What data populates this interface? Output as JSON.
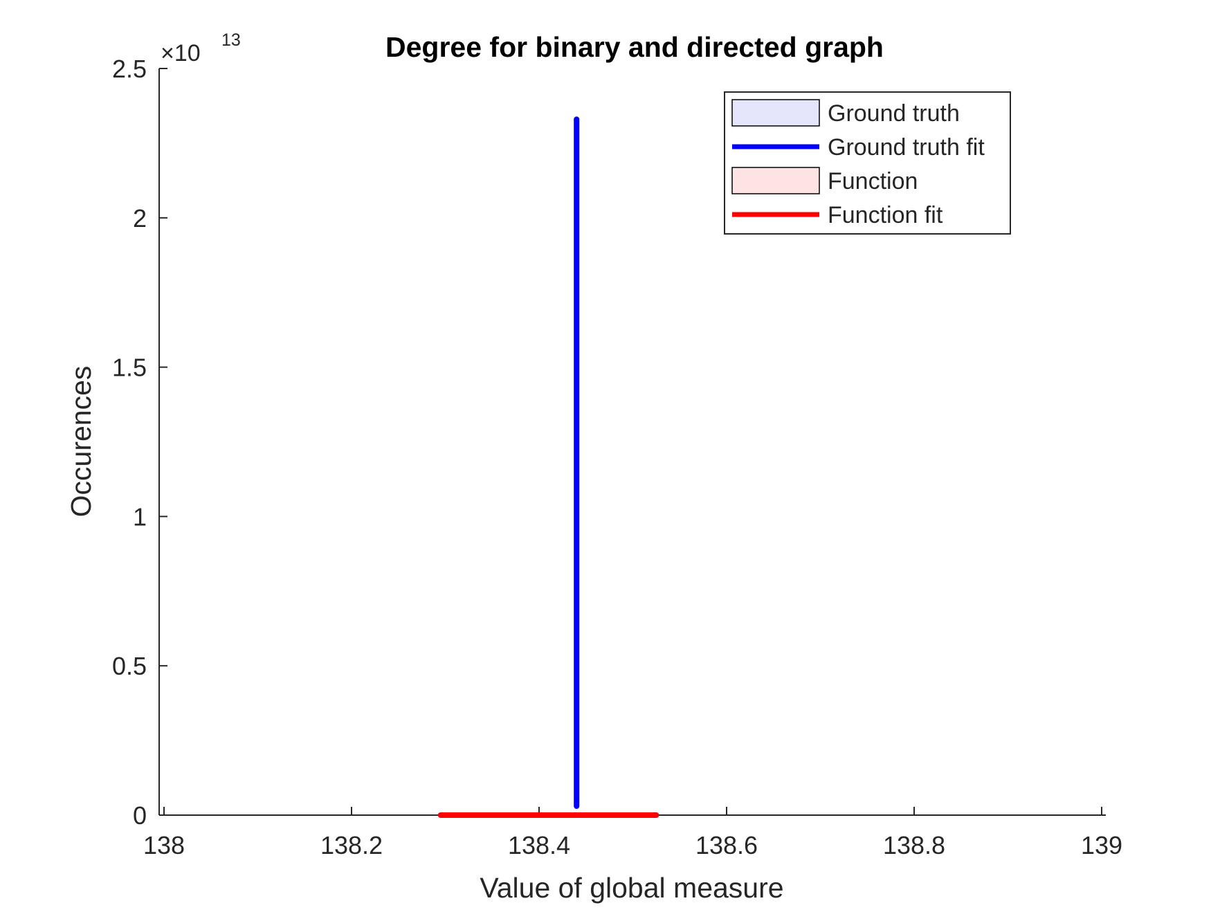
{
  "chart_data": {
    "type": "line",
    "title": "Degree for binary and directed graph",
    "xlabel": "Value of global measure",
    "ylabel": "Occurences",
    "xlim": [
      138,
      139
    ],
    "ylim": [
      0,
      2.5
    ],
    "y_exponent_label": {
      "base": "×10",
      "exponent": "13"
    },
    "x_ticks": [
      138,
      138.2,
      138.4,
      138.6,
      138.8,
      139
    ],
    "x_tick_labels": [
      "138",
      "138.2",
      "138.4",
      "138.6",
      "138.8",
      "139"
    ],
    "y_ticks": [
      0,
      0.5,
      1,
      1.5,
      2,
      2.5
    ],
    "y_tick_labels": [
      "0",
      "0.5",
      "1",
      "1.5",
      "2",
      "2.5"
    ],
    "grid": false,
    "legend_placement": "top-right",
    "legend": [
      {
        "name": "Ground truth",
        "kind": "patch",
        "fill": "#e5e5fb",
        "stroke": "#000000"
      },
      {
        "name": "Ground truth fit",
        "kind": "line",
        "color": "#0000ff"
      },
      {
        "name": "Function",
        "kind": "patch",
        "fill": "#fde3e3",
        "stroke": "#000000"
      },
      {
        "name": "Function fit",
        "kind": "line",
        "color": "#ff0000"
      }
    ],
    "series": [
      {
        "name": "Ground truth fit",
        "color": "#0000ff",
        "x": [
          138.44,
          138.44
        ],
        "y": [
          0.03,
          2.33
        ]
      },
      {
        "name": "Function fit",
        "color": "#ff0000",
        "x": [
          138.295,
          138.525
        ],
        "y": [
          0,
          0
        ]
      }
    ]
  }
}
